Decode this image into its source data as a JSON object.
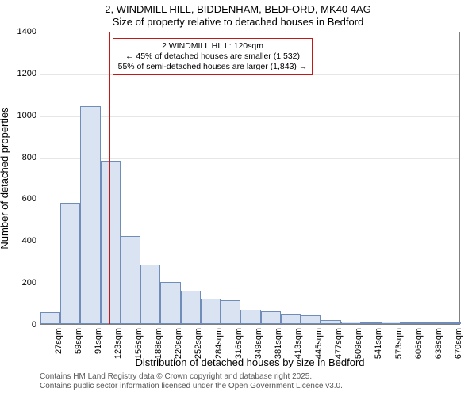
{
  "title_line1": "2, WINDMILL HILL, BIDDENHAM, BEDFORD, MK40 4AG",
  "title_line2": "Size of property relative to detached houses in Bedford",
  "y_axis_label": "Number of detached properties",
  "x_axis_label": "Distribution of detached houses by size in Bedford",
  "footer_line1": "Contains HM Land Registry data © Crown copyright and database right 2025.",
  "footer_line2": "Contains public sector information licensed under the Open Government Licence v3.0.",
  "chart": {
    "type": "histogram",
    "ylim": [
      0,
      1400
    ],
    "yticks": [
      0,
      200,
      400,
      600,
      800,
      1000,
      1200,
      1400
    ],
    "xtick_labels": [
      "27sqm",
      "59sqm",
      "91sqm",
      "123sqm",
      "156sqm",
      "188sqm",
      "220sqm",
      "252sqm",
      "284sqm",
      "316sqm",
      "349sqm",
      "381sqm",
      "413sqm",
      "445sqm",
      "477sqm",
      "509sqm",
      "541sqm",
      "573sqm",
      "606sqm",
      "638sqm",
      "670sqm"
    ],
    "bar_values": [
      55,
      580,
      1040,
      780,
      420,
      285,
      200,
      160,
      120,
      115,
      70,
      60,
      45,
      40,
      20,
      12,
      5,
      10,
      5,
      3,
      2
    ],
    "bar_fill": "#d9e3f2",
    "bar_border": "#6f8db8",
    "grid_color": "#e6e6e6",
    "axis_color": "#808080",
    "background": "#ffffff",
    "marker_value_sqm": 120,
    "marker_color": "#c41818",
    "annotation_line1": "2 WINDMILL HILL: 120sqm",
    "annotation_line2": "← 45% of detached houses are smaller (1,532)",
    "annotation_line3": "55% of semi-detached houses are larger (1,843) →",
    "title_fontsize": 13,
    "axis_label_fontsize": 13,
    "tick_fontsize": 11,
    "annotation_fontsize": 10.5,
    "footer_fontsize": 10,
    "footer_color": "#575757"
  }
}
